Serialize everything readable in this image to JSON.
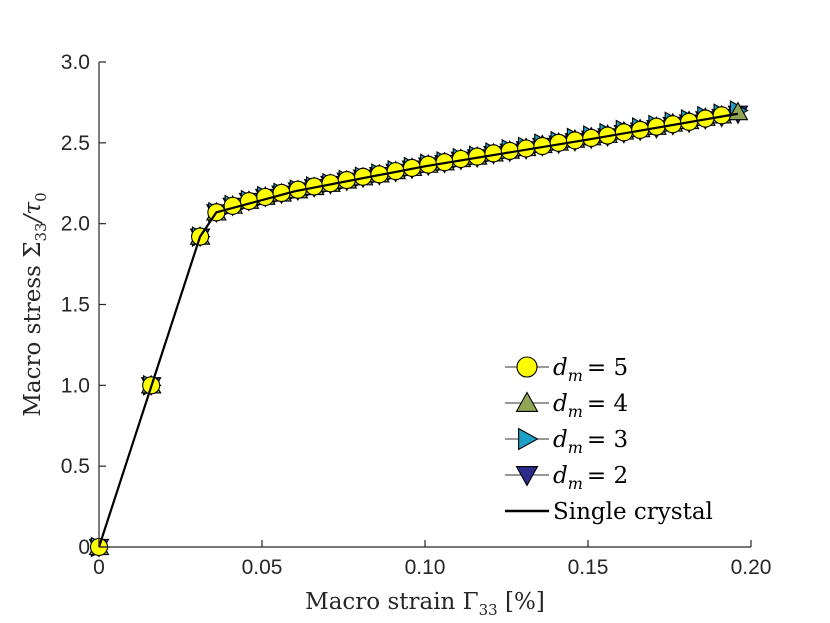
{
  "chart_data": {
    "type": "line",
    "title": "",
    "xlabel": "Macro strain Γ33 [%]",
    "ylabel": "Macro stress Σ33/τ0",
    "xlabel_parts": {
      "text": "Macro strain Γ",
      "sub": "33",
      "unit": " [%]"
    },
    "ylabel_parts": {
      "text": "Macro stress Σ",
      "sub": "33",
      "slash": "/τ",
      "sub2": "0"
    },
    "xlim": [
      0,
      0.2
    ],
    "ylim": [
      0,
      3.0
    ],
    "xticks": [
      0,
      0.05,
      0.1,
      0.15,
      0.2
    ],
    "xtick_labels": [
      "0",
      "0.05",
      "0.10",
      "0.15",
      "0.20"
    ],
    "yticks": [
      0,
      0.5,
      1.0,
      1.5,
      2.0,
      2.5,
      3.0
    ],
    "ytick_labels": [
      "0",
      "0.5",
      "1.0",
      "1.5",
      "2.0",
      "2.5",
      "3.0"
    ],
    "grid": false,
    "legend_position": "lower-right",
    "series": [
      {
        "name": "d_m = 2",
        "label_var": "d",
        "label_sub": "m",
        "label_value": "= 2",
        "marker": "triangle-down",
        "color": "#2b2b8a",
        "x": [
          0,
          0.016,
          0.031,
          0.036,
          0.041,
          0.046,
          0.051,
          0.056,
          0.061,
          0.066,
          0.071,
          0.076,
          0.081,
          0.086,
          0.091,
          0.096,
          0.101,
          0.106,
          0.111,
          0.116,
          0.121,
          0.126,
          0.131,
          0.136,
          0.141,
          0.146,
          0.151,
          0.156,
          0.161,
          0.166,
          0.171,
          0.176,
          0.181,
          0.186,
          0.191,
          0.196
        ],
        "y": [
          0,
          1.0,
          1.92,
          2.07,
          2.11,
          2.14,
          2.165,
          2.185,
          2.205,
          2.225,
          2.245,
          2.265,
          2.285,
          2.3,
          2.32,
          2.34,
          2.36,
          2.375,
          2.395,
          2.41,
          2.43,
          2.445,
          2.46,
          2.48,
          2.495,
          2.51,
          2.525,
          2.54,
          2.56,
          2.575,
          2.59,
          2.61,
          2.625,
          2.645,
          2.66,
          2.68
        ]
      },
      {
        "name": "d_m = 3",
        "label_var": "d",
        "label_sub": "m",
        "label_value": "= 3",
        "marker": "triangle-right",
        "color": "#1b9fc7",
        "x": [
          0,
          0.016,
          0.031,
          0.036,
          0.041,
          0.046,
          0.051,
          0.056,
          0.061,
          0.066,
          0.071,
          0.076,
          0.081,
          0.086,
          0.091,
          0.096,
          0.101,
          0.106,
          0.111,
          0.116,
          0.121,
          0.126,
          0.131,
          0.136,
          0.141,
          0.146,
          0.151,
          0.156,
          0.161,
          0.166,
          0.171,
          0.176,
          0.181,
          0.186,
          0.191,
          0.196
        ],
        "y": [
          0,
          1.0,
          1.92,
          2.07,
          2.115,
          2.145,
          2.17,
          2.19,
          2.21,
          2.23,
          2.25,
          2.27,
          2.29,
          2.31,
          2.33,
          2.35,
          2.37,
          2.385,
          2.405,
          2.42,
          2.44,
          2.46,
          2.475,
          2.495,
          2.51,
          2.53,
          2.545,
          2.56,
          2.58,
          2.595,
          2.61,
          2.63,
          2.645,
          2.665,
          2.68,
          2.7
        ]
      },
      {
        "name": "d_m = 4",
        "label_var": "d",
        "label_sub": "m",
        "label_value": "= 4",
        "marker": "triangle-up",
        "color": "#8fa656",
        "x": [
          0,
          0.016,
          0.031,
          0.036,
          0.041,
          0.046,
          0.051,
          0.056,
          0.061,
          0.066,
          0.071,
          0.076,
          0.081,
          0.086,
          0.091,
          0.096,
          0.101,
          0.106,
          0.111,
          0.116,
          0.121,
          0.126,
          0.131,
          0.136,
          0.141,
          0.146,
          0.151,
          0.156,
          0.161,
          0.166,
          0.171,
          0.176,
          0.181,
          0.186,
          0.191,
          0.196
        ],
        "y": [
          0,
          1.0,
          1.92,
          2.07,
          2.112,
          2.142,
          2.167,
          2.187,
          2.207,
          2.227,
          2.247,
          2.267,
          2.287,
          2.305,
          2.325,
          2.345,
          2.365,
          2.38,
          2.4,
          2.415,
          2.435,
          2.452,
          2.468,
          2.487,
          2.502,
          2.52,
          2.535,
          2.55,
          2.57,
          2.585,
          2.6,
          2.62,
          2.635,
          2.655,
          2.67,
          2.69
        ]
      },
      {
        "name": "d_m = 5",
        "label_var": "d",
        "label_sub": "m",
        "label_value": "= 5",
        "marker": "circle",
        "color": "#ffff00",
        "x": [
          0,
          0.016,
          0.031,
          0.036,
          0.041,
          0.046,
          0.051,
          0.056,
          0.061,
          0.066,
          0.071,
          0.076,
          0.081,
          0.086,
          0.091,
          0.096,
          0.101,
          0.106,
          0.111,
          0.116,
          0.121,
          0.126,
          0.131,
          0.136,
          0.141,
          0.146,
          0.151,
          0.156,
          0.161,
          0.166,
          0.171,
          0.176,
          0.181,
          0.186,
          0.191
        ],
        "y": [
          0,
          1.0,
          1.92,
          2.07,
          2.11,
          2.14,
          2.165,
          2.19,
          2.21,
          2.23,
          2.25,
          2.27,
          2.29,
          2.305,
          2.325,
          2.345,
          2.365,
          2.38,
          2.4,
          2.415,
          2.435,
          2.45,
          2.465,
          2.48,
          2.5,
          2.515,
          2.53,
          2.545,
          2.565,
          2.58,
          2.6,
          2.615,
          2.63,
          2.65,
          2.67
        ]
      },
      {
        "name": "Single crystal",
        "label_text": "Single crystal",
        "marker": "none",
        "color": "#000000",
        "x": [
          0,
          0.031,
          0.036,
          0.06,
          0.1,
          0.15,
          0.196
        ],
        "y": [
          0,
          1.92,
          2.07,
          2.2,
          2.355,
          2.52,
          2.68
        ]
      }
    ]
  }
}
